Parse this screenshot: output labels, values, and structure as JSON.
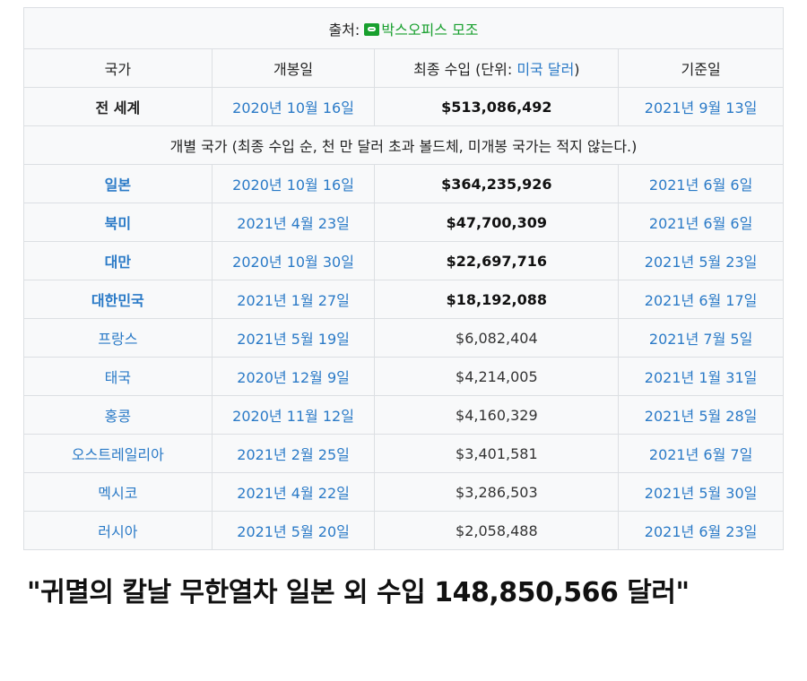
{
  "source": {
    "label": "출처:",
    "link_text": "박스오피스 모조",
    "icon": "link-icon"
  },
  "headers": {
    "country": "국가",
    "release": "개봉일",
    "gross_prefix": "최종 수입 (단위: ",
    "gross_unit": "미국 달러",
    "gross_suffix": ")",
    "as_of": "기준일"
  },
  "worldwide": {
    "country": "전 세계",
    "release": "2020년 10월 16일",
    "gross": "$513,086,492",
    "as_of": "2021년 9월 13일"
  },
  "note": "개별 국가 (최종 수입 순, 천 만 달러 초과 볼드체, 미개봉 국가는 적지 않는다.)",
  "rows": [
    {
      "country": "일본",
      "release": "2020년 10월 16일",
      "gross": "$364,235,926",
      "as_of": "2021년 6월 6일",
      "bold": true
    },
    {
      "country": "북미",
      "release": "2021년 4월 23일",
      "gross": "$47,700,309",
      "as_of": "2021년 6월 6일",
      "bold": true
    },
    {
      "country": "대만",
      "release": "2020년 10월 30일",
      "gross": "$22,697,716",
      "as_of": "2021년 5월 23일",
      "bold": true
    },
    {
      "country": "대한민국",
      "release": "2021년 1월 27일",
      "gross": "$18,192,088",
      "as_of": "2021년 6월 17일",
      "bold": true
    },
    {
      "country": "프랑스",
      "release": "2021년 5월 19일",
      "gross": "$6,082,404",
      "as_of": "2021년 7월 5일",
      "bold": false
    },
    {
      "country": "태국",
      "release": "2020년 12월 9일",
      "gross": "$4,214,005",
      "as_of": "2021년 1월 31일",
      "bold": false
    },
    {
      "country": "홍콩",
      "release": "2020년 11월 12일",
      "gross": "$4,160,329",
      "as_of": "2021년 5월 28일",
      "bold": false
    },
    {
      "country": "오스트레일리아",
      "release": "2021년 2월 25일",
      "gross": "$3,401,581",
      "as_of": "2021년 6월 7일",
      "bold": false
    },
    {
      "country": "멕시코",
      "release": "2021년 4월 22일",
      "gross": "$3,286,503",
      "as_of": "2021년 5월 30일",
      "bold": false
    },
    {
      "country": "러시아",
      "release": "2021년 5월 20일",
      "gross": "$2,058,488",
      "as_of": "2021년 6월 23일",
      "bold": false
    }
  ],
  "caption": "\"귀멸의 칼날 무한열차 일본 외 수입 148,850,566 달러\"",
  "colors": {
    "link": "#2a7ac7",
    "source_link": "#18a02e",
    "table_bg": "#f8f9fa",
    "border": "#dcdfe3"
  }
}
